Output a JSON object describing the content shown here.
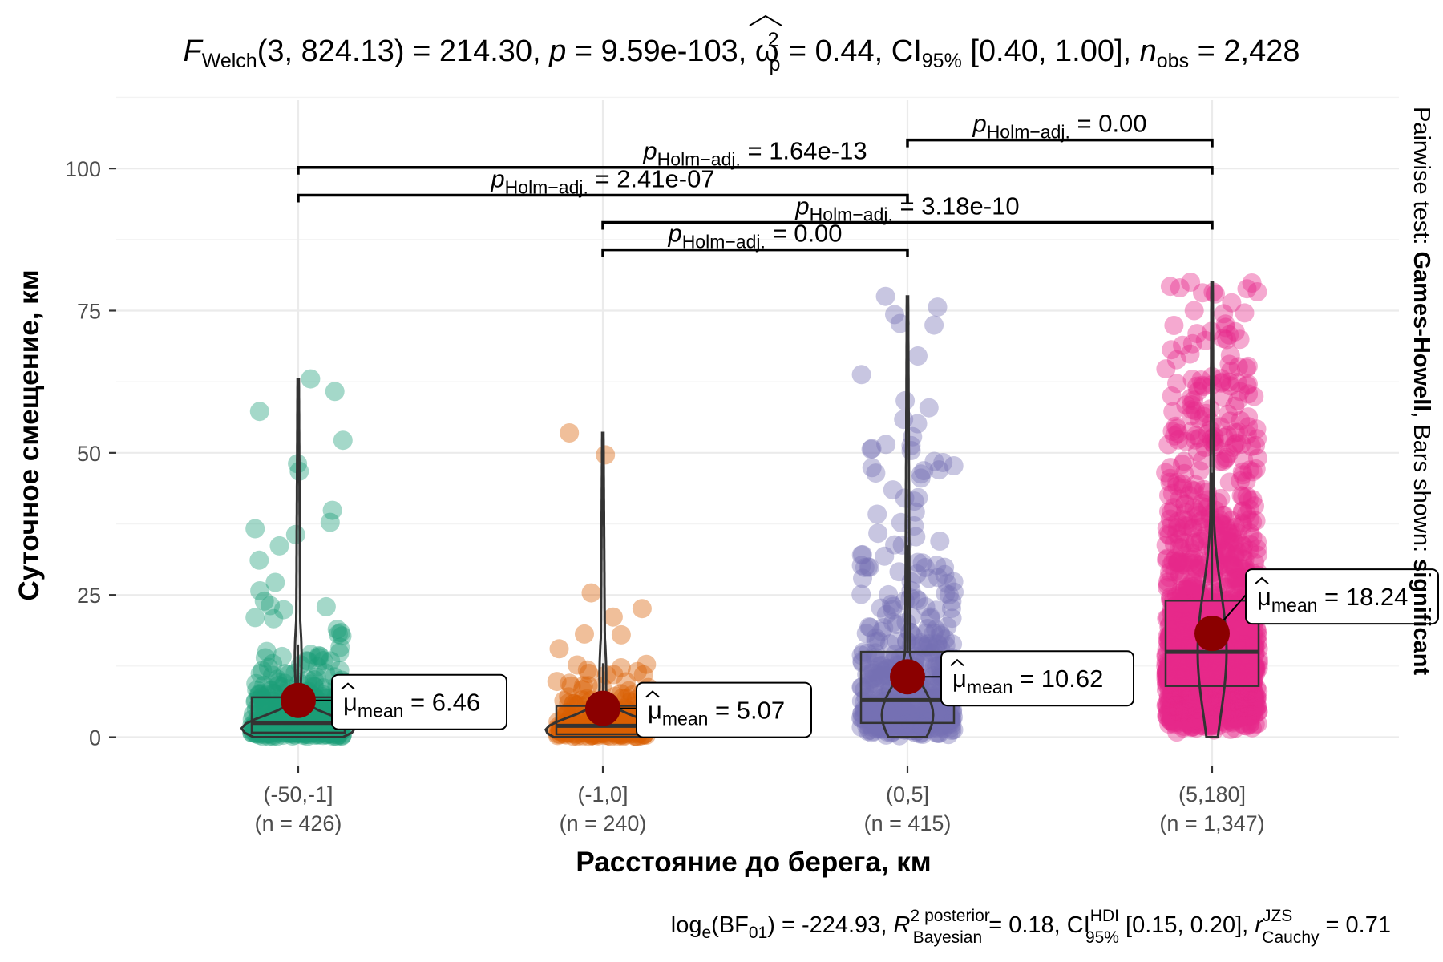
{
  "chart_data": {
    "type": "violin-box-scatter",
    "title": {
      "stat": "F",
      "stat_sub": "Welch",
      "df": "(3, 824.13)",
      "value": " = 214.30, ",
      "p_sym": "p",
      "p_val": " = 9.59e-103, ",
      "omega": "ω",
      "omega_sup": "2",
      "omega_sub": "p",
      "omega_val": " = 0.44, CI",
      "ci_sub": "95%",
      "ci_val": " [0.40, 1.00], ",
      "n_sym": "n",
      "n_sub": "obs",
      "n_val": " = 2,428"
    },
    "subtitle": {
      "bf": "log",
      "bf_sub": "e",
      "bf_mid": "(BF",
      "bf_sub2": "01",
      "bf_val": ") = -224.93, ",
      "r2": "R",
      "r2_sup": "2",
      "r2_sup2": "posterior",
      "r2_sub": "Bayesian",
      "r2_val": " = 0.18, CI",
      "hdi_sup": "HDI",
      "hdi_sub": "95%",
      "hdi_val": " [0.15, 0.20], ",
      "r_sym": "r",
      "r_sup": "JZS",
      "r_sub": "Cauchy",
      "r_val": " = 0.71"
    },
    "xlabel": "Расстояние до берега, км",
    "ylabel": "Суточное смещение, км",
    "ylim": [
      -5,
      112
    ],
    "yticks": [
      0,
      25,
      50,
      75,
      100
    ],
    "grid": true,
    "side_caption": {
      "pre": "Pairwise test: ",
      "test": "Games-Howell",
      "mid": ", Bars shown: ",
      "shown": "significant"
    },
    "groups": [
      {
        "category": "(-50,-1]",
        "n_label": "(n = 426)",
        "n": 426,
        "color": "#1b9e77",
        "median": 2.5,
        "q1": 0.8,
        "q3": 7.0,
        "min": 0,
        "max": 63,
        "mean": 6.46,
        "mean_label": "6.46"
      },
      {
        "category": "(-1,0]",
        "n_label": "(n = 240)",
        "n": 240,
        "color": "#d95f02",
        "median": 2.0,
        "q1": 0.5,
        "q3": 5.5,
        "min": 0,
        "max": 53.5,
        "mean": 5.07,
        "mean_label": "5.07"
      },
      {
        "category": "(0,5]",
        "n_label": "(n = 415)",
        "n": 415,
        "color": "#7570b3",
        "median": 6.5,
        "q1": 2.5,
        "q3": 15.0,
        "min": 0,
        "max": 77.5,
        "mean": 10.62,
        "mean_label": "10.62"
      },
      {
        "category": "(5,180]",
        "n_label": "(n = 1,347)",
        "n": 1347,
        "color": "#e7298a",
        "median": 15.0,
        "q1": 9.0,
        "q3": 24.0,
        "min": 0,
        "max": 80,
        "mean": 18.24,
        "mean_label": "18.24"
      }
    ],
    "mean_symbol": "μ",
    "mean_sub": "mean",
    "mean_color": "#8b0000",
    "pairwise": [
      {
        "from": 2,
        "to": 3,
        "y": 105,
        "p_value": "0.00"
      },
      {
        "from": 0,
        "to": 3,
        "y": 100.2,
        "p_value": "1.64e-13"
      },
      {
        "from": 0,
        "to": 2,
        "y": 95.3,
        "p_value": "2.41e-07"
      },
      {
        "from": 1,
        "to": 3,
        "y": 90.5,
        "p_value": "3.18e-10"
      },
      {
        "from": 1,
        "to": 2,
        "y": 85.7,
        "p_value": "0.00"
      }
    ],
    "p_label": "p",
    "p_label_sub": "Holm−adj."
  }
}
